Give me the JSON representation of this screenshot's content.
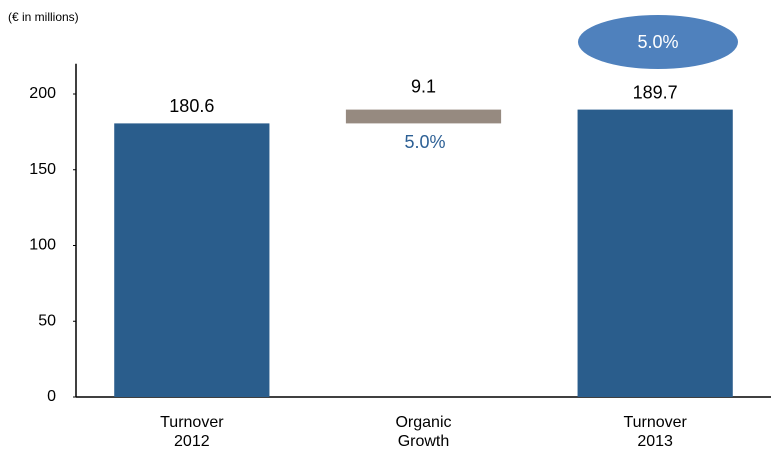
{
  "chart_data": {
    "type": "waterfall",
    "subtitle": "(€ in millions)",
    "categories": [
      "Turnover 2012",
      "Organic Growth",
      "Turnover 2013"
    ],
    "values": [
      180.6,
      9.1,
      189.7
    ],
    "colors": [
      "#2a5d8c",
      "#968a80",
      "#2a5d8c"
    ],
    "growth_label": "5.0%",
    "total_growth_label": "5.0%",
    "ylim": [
      0,
      220
    ],
    "yticks": [
      0,
      50,
      100,
      150,
      200
    ]
  }
}
